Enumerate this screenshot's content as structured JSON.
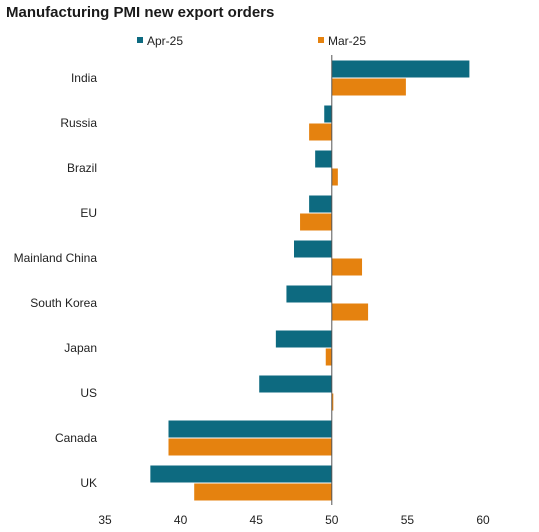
{
  "chart_data": {
    "type": "bar",
    "orientation": "horizontal",
    "title": "Manufacturing PMI new export orders",
    "xlabel": "",
    "ylabel": "",
    "xlim": [
      35,
      60
    ],
    "baseline": 50,
    "xticks": [
      35,
      40,
      45,
      50,
      55,
      60
    ],
    "grid": false,
    "legend_position": "top",
    "categories": [
      "India",
      "Russia",
      "Brazil",
      "EU",
      "Mainland China",
      "South Korea",
      "Japan",
      "US",
      "Canada",
      "UK"
    ],
    "series": [
      {
        "name": "Apr-25",
        "color": "#0d6a80",
        "values": [
          59.1,
          49.5,
          48.9,
          48.5,
          47.5,
          47.0,
          46.3,
          45.2,
          39.2,
          38.0
        ]
      },
      {
        "name": "Mar-25",
        "color": "#e5820f",
        "values": [
          54.9,
          48.5,
          50.4,
          47.9,
          52.0,
          52.4,
          49.6,
          50.1,
          39.2,
          40.9
        ]
      }
    ]
  }
}
